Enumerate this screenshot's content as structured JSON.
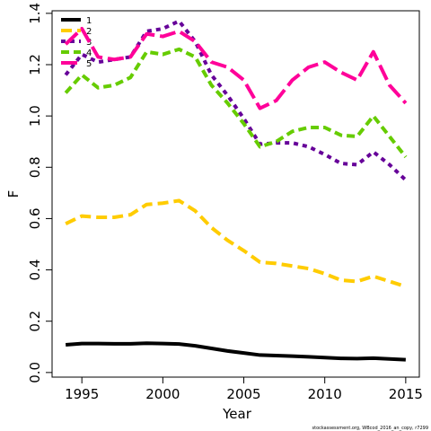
{
  "chart_data": {
    "type": "line",
    "x_label": "Year",
    "y_label": "F",
    "footnote": "stockassessment.org, WBcod_2016_an_copy, r7299",
    "x": [
      1994,
      1995,
      1996,
      1997,
      1998,
      1999,
      2000,
      2001,
      2002,
      2003,
      2004,
      2005,
      2006,
      2007,
      2008,
      2009,
      2010,
      2011,
      2012,
      2013,
      2014,
      2015
    ],
    "xlim": [
      1993.16,
      2015.84
    ],
    "xticks": [
      1995,
      2000,
      2005,
      2010,
      2015
    ],
    "ylim": [
      -0.018,
      1.41
    ],
    "yticks": [
      {
        "value": 0,
        "label": "0.0"
      },
      0.2,
      0.4,
      0.6,
      0.8,
      {
        "value": 1,
        "label": "1.0"
      },
      1.2,
      1.4
    ],
    "legend": "top-left",
    "series": [
      {
        "name": "1",
        "color": "#000000",
        "dash": "none",
        "values": [
          0.108,
          0.113,
          0.113,
          0.112,
          0.112,
          0.114,
          0.113,
          0.111,
          0.104,
          0.094,
          0.084,
          0.076,
          0.068,
          0.066,
          0.064,
          0.061,
          0.058,
          0.055,
          0.054,
          0.056,
          0.053,
          0.05
        ]
      },
      {
        "name": "2",
        "color": "#ffcc00",
        "dash": "12 6",
        "values": [
          0.58,
          0.61,
          0.605,
          0.605,
          0.615,
          0.655,
          0.66,
          0.67,
          0.63,
          0.565,
          0.515,
          0.475,
          0.43,
          0.425,
          0.415,
          0.405,
          0.385,
          0.36,
          0.355,
          0.375,
          0.355,
          0.335
        ]
      },
      {
        "name": "3",
        "color": "#660099",
        "dash": "5 5",
        "values": [
          1.16,
          1.24,
          1.21,
          1.22,
          1.23,
          1.33,
          1.34,
          1.37,
          1.29,
          1.16,
          1.08,
          0.99,
          0.89,
          0.895,
          0.895,
          0.88,
          0.85,
          0.815,
          0.81,
          0.86,
          0.81,
          0.75
        ]
      },
      {
        "name": "4",
        "color": "#66cc00",
        "dash": "9 5",
        "values": [
          1.09,
          1.16,
          1.11,
          1.12,
          1.15,
          1.25,
          1.24,
          1.26,
          1.23,
          1.12,
          1.05,
          0.97,
          0.88,
          0.9,
          0.94,
          0.955,
          0.955,
          0.925,
          0.92,
          1.0,
          0.92,
          0.84
        ]
      },
      {
        "name": "5",
        "color": "#ff0099",
        "dash": "18 6",
        "values": [
          1.28,
          1.34,
          1.23,
          1.22,
          1.23,
          1.32,
          1.31,
          1.33,
          1.29,
          1.21,
          1.19,
          1.14,
          1.03,
          1.06,
          1.14,
          1.19,
          1.21,
          1.17,
          1.14,
          1.25,
          1.12,
          1.05
        ]
      }
    ]
  }
}
